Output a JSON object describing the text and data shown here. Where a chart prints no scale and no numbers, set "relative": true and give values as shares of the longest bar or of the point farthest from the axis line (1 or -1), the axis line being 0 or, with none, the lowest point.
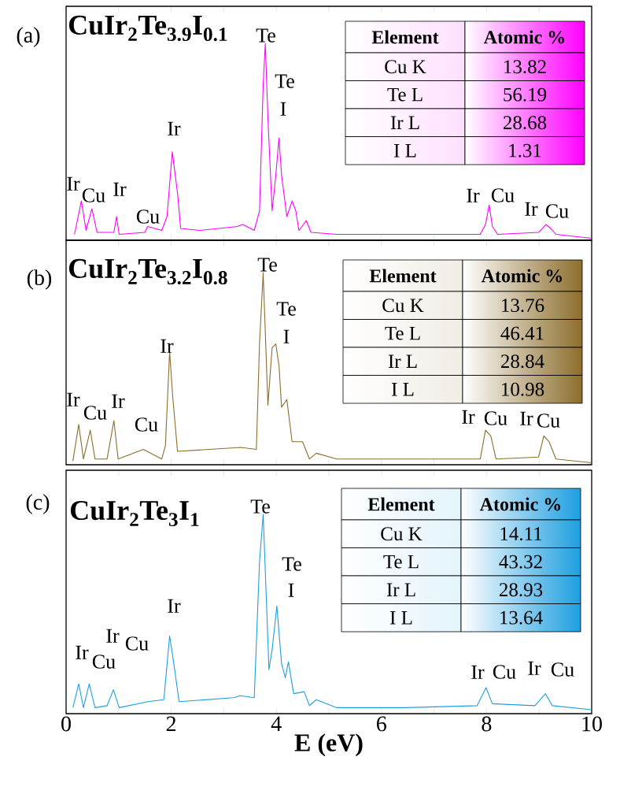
{
  "chart_data": [
    {
      "type": "line",
      "relative": true,
      "title": "CuIr$_{2}$Te$_{3.9}$I$_{0.1}$",
      "color": "#ff00ff",
      "tick_labels": false,
      "xlim": [
        0,
        10
      ],
      "xticks": [
        0,
        {
          "value": 1,
          "label": null
        },
        2,
        {
          "value": 3,
          "label": null
        },
        4,
        {
          "value": 5,
          "label": null
        },
        6,
        {
          "value": 7,
          "label": null
        },
        8,
        {
          "value": 9,
          "label": null
        },
        10
      ],
      "x": [
        0.16,
        0.29,
        0.38,
        0.49,
        0.59,
        0.91,
        0.96,
        1.01,
        1.5,
        1.55,
        1.82,
        1.92,
        2.02,
        2.12,
        2.18,
        2.54,
        3.26,
        3.36,
        3.58,
        3.68,
        3.75,
        3.79,
        3.84,
        3.92,
        3.99,
        4.05,
        4.1,
        4.2,
        4.3,
        4.37,
        4.43,
        4.57,
        4.66,
        5.15,
        6.45,
        7.88,
        7.98,
        8.05,
        8.11,
        8.21,
        8.99,
        9.13,
        9.22,
        9.32,
        10.0
      ],
      "values": [
        0.03,
        0.2,
        0.05,
        0.16,
        0.04,
        0.04,
        0.12,
        0.03,
        0.04,
        0.07,
        0.05,
        0.12,
        0.45,
        0.24,
        0.06,
        0.05,
        0.07,
        0.08,
        0.05,
        0.15,
        0.79,
        1.0,
        0.62,
        0.15,
        0.33,
        0.52,
        0.33,
        0.12,
        0.2,
        0.15,
        0.05,
        0.1,
        0.04,
        0.03,
        0.03,
        0.03,
        0.08,
        0.18,
        0.07,
        0.03,
        0.04,
        0.08,
        0.06,
        0.03,
        0.01
      ],
      "annotations": [
        "(a)",
        "Element",
        "Atomic %",
        "Cu K",
        "13.82",
        "Te L",
        "56.19",
        "Ir L",
        "28.68",
        "I L",
        "1.31",
        "Ir",
        "Cu",
        "Ir",
        "Cu",
        "Ir",
        "Te",
        "Te",
        "I",
        "Ir",
        "Cu",
        "Ir",
        "Cu"
      ]
    },
    {
      "type": "line",
      "relative": true,
      "title": "CuIr$_{2}$Te$_{3.2}$I$_{0.8}$",
      "color": "#8c6d2c",
      "tick_labels": false,
      "xlim": [
        0,
        10
      ],
      "xticks": [
        0,
        {
          "value": 1,
          "label": null
        },
        2,
        {
          "value": 3,
          "label": null
        },
        4,
        {
          "value": 5,
          "label": null
        },
        6,
        {
          "value": 7,
          "label": null
        },
        8,
        {
          "value": 9,
          "label": null
        },
        10
      ],
      "x": [
        0.13,
        0.24,
        0.33,
        0.46,
        0.55,
        0.78,
        0.91,
        0.99,
        1.47,
        1.82,
        1.89,
        1.97,
        2.03,
        2.12,
        3.32,
        3.62,
        3.68,
        3.75,
        3.84,
        3.92,
        3.99,
        4.05,
        4.1,
        4.2,
        4.3,
        4.5,
        4.63,
        4.76,
        5.15,
        6.45,
        7.88,
        7.98,
        8.08,
        8.18,
        8.99,
        9.09,
        9.19,
        9.32,
        10.0
      ],
      "values": [
        0.02,
        0.21,
        0.03,
        0.18,
        0.03,
        0.03,
        0.23,
        0.03,
        0.08,
        0.03,
        0.1,
        0.59,
        0.35,
        0.07,
        0.09,
        0.08,
        0.63,
        1.0,
        0.31,
        0.61,
        0.63,
        0.52,
        0.3,
        0.34,
        0.12,
        0.12,
        0.03,
        0.06,
        0.03,
        0.03,
        0.03,
        0.18,
        0.15,
        0.03,
        0.04,
        0.15,
        0.12,
        0.03,
        0.01
      ],
      "annotations": [
        "(b)",
        "Element",
        "Atomic %",
        "Cu K",
        "13.76",
        "Te L",
        "46.41",
        "Ir L",
        "28.84",
        "I L",
        "10.98",
        "Ir",
        "Cu",
        "Ir",
        "Cu",
        "Ir",
        "Te",
        "Te",
        "I",
        "Ir",
        "Cu",
        "Ir",
        "Cu"
      ]
    },
    {
      "type": "line",
      "relative": true,
      "title": "CuIr$_{2}$Te$_{3}$I$_{1}$",
      "color": "#1e9ee0",
      "tick_labels": "x",
      "xlabel": "E (eV)",
      "xlim": [
        0,
        10
      ],
      "xticks": [
        0,
        {
          "value": 1,
          "label": null
        },
        2,
        {
          "value": 3,
          "label": null
        },
        4,
        {
          "value": 5,
          "label": null
        },
        6,
        {
          "value": 7,
          "label": null
        },
        8,
        {
          "value": 9,
          "label": null
        },
        10
      ],
      "x": [
        0.13,
        0.24,
        0.33,
        0.44,
        0.55,
        0.78,
        0.9,
        1.01,
        1.56,
        1.86,
        1.97,
        2.05,
        2.15,
        3.19,
        3.31,
        3.58,
        3.68,
        3.75,
        3.86,
        3.92,
        4.01,
        4.1,
        4.17,
        4.23,
        4.33,
        4.53,
        4.63,
        4.76,
        5.15,
        6.45,
        7.82,
        7.99,
        8.11,
        8.92,
        9.12,
        9.25,
        10.0
      ],
      "values": [
        0.03,
        0.15,
        0.03,
        0.15,
        0.03,
        0.04,
        0.12,
        0.03,
        0.06,
        0.07,
        0.39,
        0.25,
        0.06,
        0.08,
        0.09,
        0.08,
        0.76,
        1.0,
        0.22,
        0.32,
        0.54,
        0.25,
        0.18,
        0.26,
        0.1,
        0.11,
        0.04,
        0.07,
        0.03,
        0.03,
        0.04,
        0.13,
        0.05,
        0.04,
        0.1,
        0.04,
        0.02
      ],
      "annotations": [
        "(c)",
        "Element",
        "Atomic %",
        "Cu K",
        "14.11",
        "Te L",
        "43.32",
        "Ir L",
        "28.93",
        "I L",
        "13.64",
        "Ir",
        "Cu",
        "Ir",
        "Cu",
        "Ir",
        "Te",
        "Te",
        "I",
        "Ir",
        "Cu",
        "Ir",
        "Cu"
      ]
    }
  ]
}
